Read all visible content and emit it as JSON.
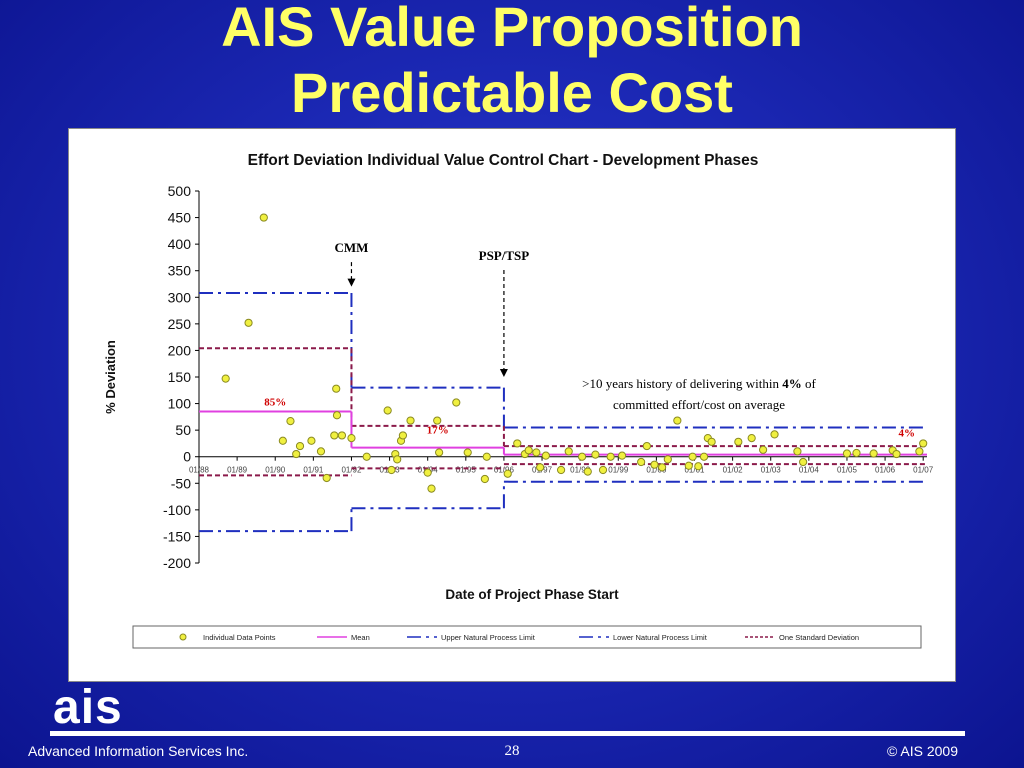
{
  "slide": {
    "title_line1": "AIS Value Proposition",
    "title_line2": "Predictable Cost",
    "logo_text": "ais",
    "footer_company": "Advanced Information Services Inc.",
    "footer_page": "28",
    "footer_copyright": "© AIS 2009"
  },
  "colors": {
    "background": "#1d2ab8",
    "title": "#ffff66",
    "mean": "#e040e0",
    "natural_limit": "#1f2fbf",
    "std_dev": "#8b1a4a",
    "points_fill": "#f0f040",
    "points_stroke": "#8a8a20",
    "annotation_red": "#d00000"
  },
  "chart_data": {
    "type": "scatter",
    "title": "Effort Deviation Individual Value Control Chart - Development Phases",
    "xlabel": "Date of Project Phase Start",
    "ylabel": "% Deviation",
    "ylim": [
      -200,
      500
    ],
    "yticks": [
      500,
      450,
      400,
      350,
      300,
      250,
      200,
      150,
      100,
      50,
      0,
      -50,
      -100,
      -150,
      -200
    ],
    "xticks": [
      "01/88",
      "01/89",
      "01/90",
      "01/91",
      "01/92",
      "01/93",
      "01/94",
      "01/95",
      "01/96",
      "01/97",
      "01/98",
      "01/99",
      "01/00",
      "01/01",
      "01/02",
      "01/03",
      "01/04",
      "01/05",
      "01/06",
      "01/07"
    ],
    "xlim": [
      1988.0,
      2007.1
    ],
    "grid": false,
    "legend_position": "bottom",
    "legend": [
      "Individual Data Points",
      "Mean",
      "Upper Natural Process Limit",
      "Lower Natural Process Limit",
      "One Standard Deviation"
    ],
    "phases": [
      {
        "x_start": 1988.0,
        "x_end": 1992.0,
        "mean": 85,
        "unpl": 308,
        "lnpl": -140,
        "sd_upper": 204,
        "sd_lower": -35,
        "mean_label": "85%"
      },
      {
        "x_start": 1992.0,
        "x_end": 1996.0,
        "mean": 17,
        "unpl": 130,
        "lnpl": -97,
        "sd_upper": 58,
        "sd_lower": -22,
        "mean_label": "17%"
      },
      {
        "x_start": 1996.0,
        "x_end": 2007.1,
        "mean": 4,
        "unpl": 55,
        "lnpl": -47,
        "sd_upper": 20,
        "sd_lower": -14,
        "mean_label": "4%"
      }
    ],
    "annotations": [
      {
        "label": "CMM",
        "x": 1992.0,
        "y_from": 370,
        "y_to": 320
      },
      {
        "label": "PSP/TSP",
        "x": 1996.0,
        "y_from": 355,
        "y_to": 150
      }
    ],
    "note_line1_prefix": ">10 years history of delivering within ",
    "note_line1_bold": "4%",
    "note_line1_suffix": " of",
    "note_line2": "committed effort/cost on average",
    "points": [
      {
        "x": 1988.7,
        "y": 147
      },
      {
        "x": 1989.3,
        "y": 252
      },
      {
        "x": 1989.7,
        "y": 450
      },
      {
        "x": 1990.2,
        "y": 30
      },
      {
        "x": 1990.4,
        "y": 67
      },
      {
        "x": 1990.55,
        "y": 5
      },
      {
        "x": 1990.65,
        "y": 20
      },
      {
        "x": 1990.95,
        "y": 30
      },
      {
        "x": 1991.2,
        "y": 10
      },
      {
        "x": 1991.35,
        "y": -40
      },
      {
        "x": 1991.6,
        "y": 128
      },
      {
        "x": 1991.62,
        "y": 78
      },
      {
        "x": 1991.55,
        "y": 40
      },
      {
        "x": 1991.75,
        "y": 40
      },
      {
        "x": 1992.0,
        "y": 35
      },
      {
        "x": 1992.4,
        "y": 0
      },
      {
        "x": 1992.95,
        "y": 87
      },
      {
        "x": 1993.05,
        "y": -25
      },
      {
        "x": 1993.15,
        "y": 5
      },
      {
        "x": 1993.2,
        "y": -5
      },
      {
        "x": 1993.3,
        "y": 30
      },
      {
        "x": 1993.35,
        "y": 40
      },
      {
        "x": 1993.55,
        "y": 68
      },
      {
        "x": 1994.0,
        "y": -30
      },
      {
        "x": 1994.1,
        "y": -60
      },
      {
        "x": 1994.25,
        "y": 68
      },
      {
        "x": 1994.3,
        "y": 8
      },
      {
        "x": 1994.75,
        "y": 102
      },
      {
        "x": 1995.05,
        "y": 8
      },
      {
        "x": 1995.5,
        "y": -42
      },
      {
        "x": 1995.55,
        "y": 0
      },
      {
        "x": 1996.1,
        "y": -32
      },
      {
        "x": 1996.35,
        "y": 25
      },
      {
        "x": 1996.55,
        "y": 5
      },
      {
        "x": 1996.65,
        "y": 12
      },
      {
        "x": 1996.85,
        "y": 8
      },
      {
        "x": 1996.95,
        "y": -20
      },
      {
        "x": 1997.1,
        "y": 2
      },
      {
        "x": 1997.5,
        "y": -25
      },
      {
        "x": 1997.7,
        "y": 10
      },
      {
        "x": 1998.05,
        "y": 0
      },
      {
        "x": 1998.2,
        "y": -28
      },
      {
        "x": 1998.4,
        "y": 4
      },
      {
        "x": 1998.6,
        "y": -25
      },
      {
        "x": 1998.8,
        "y": 0
      },
      {
        "x": 1999.1,
        "y": 2
      },
      {
        "x": 1999.6,
        "y": -10
      },
      {
        "x": 1999.75,
        "y": 20
      },
      {
        "x": 1999.95,
        "y": -15
      },
      {
        "x": 2000.15,
        "y": -20
      },
      {
        "x": 2000.3,
        "y": -5
      },
      {
        "x": 2000.55,
        "y": 68
      },
      {
        "x": 2000.85,
        "y": -17
      },
      {
        "x": 2000.95,
        "y": 0
      },
      {
        "x": 2001.1,
        "y": -18
      },
      {
        "x": 2001.25,
        "y": 0
      },
      {
        "x": 2001.35,
        "y": 35
      },
      {
        "x": 2001.45,
        "y": 28
      },
      {
        "x": 2002.15,
        "y": 28
      },
      {
        "x": 2002.5,
        "y": 35
      },
      {
        "x": 2002.8,
        "y": 13
      },
      {
        "x": 2003.1,
        "y": 42
      },
      {
        "x": 2003.7,
        "y": 10
      },
      {
        "x": 2003.85,
        "y": -10
      },
      {
        "x": 2005.0,
        "y": 6
      },
      {
        "x": 2005.25,
        "y": 7
      },
      {
        "x": 2005.7,
        "y": 6
      },
      {
        "x": 2006.2,
        "y": 12
      },
      {
        "x": 2006.3,
        "y": 5
      },
      {
        "x": 2006.9,
        "y": 10
      },
      {
        "x": 2007.0,
        "y": 25
      }
    ]
  }
}
